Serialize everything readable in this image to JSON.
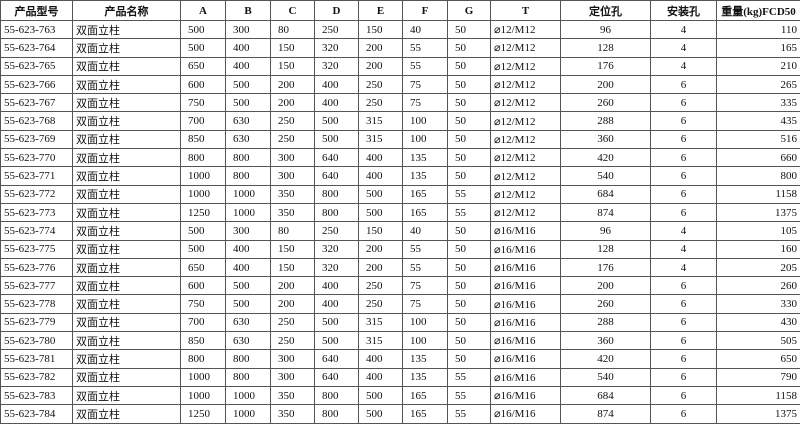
{
  "table": {
    "header": [
      "产品型号",
      "产品名称",
      "A",
      "B",
      "C",
      "D",
      "E",
      "F",
      "G",
      "T",
      "定位孔",
      "安装孔",
      "重量(kg)FCD50"
    ],
    "rows": [
      [
        "55-623-763",
        "双面立柱",
        500,
        300,
        80,
        250,
        150,
        40,
        50,
        "⌀12/M12",
        96,
        4,
        110
      ],
      [
        "55-623-764",
        "双面立柱",
        500,
        400,
        150,
        320,
        200,
        55,
        50,
        "⌀12/M12",
        128,
        4,
        165
      ],
      [
        "55-623-765",
        "双面立柱",
        650,
        400,
        150,
        320,
        200,
        55,
        50,
        "⌀12/M12",
        176,
        4,
        210
      ],
      [
        "55-623-766",
        "双面立柱",
        600,
        500,
        200,
        400,
        250,
        75,
        50,
        "⌀12/M12",
        200,
        6,
        265
      ],
      [
        "55-623-767",
        "双面立柱",
        750,
        500,
        200,
        400,
        250,
        75,
        50,
        "⌀12/M12",
        260,
        6,
        335
      ],
      [
        "55-623-768",
        "双面立柱",
        700,
        630,
        250,
        500,
        315,
        100,
        50,
        "⌀12/M12",
        288,
        6,
        435
      ],
      [
        "55-623-769",
        "双面立柱",
        850,
        630,
        250,
        500,
        315,
        100,
        50,
        "⌀12/M12",
        360,
        6,
        516
      ],
      [
        "55-623-770",
        "双面立柱",
        800,
        800,
        300,
        640,
        400,
        135,
        50,
        "⌀12/M12",
        420,
        6,
        660
      ],
      [
        "55-623-771",
        "双面立柱",
        1000,
        800,
        300,
        640,
        400,
        135,
        50,
        "⌀12/M12",
        540,
        6,
        800
      ],
      [
        "55-623-772",
        "双面立柱",
        1000,
        1000,
        350,
        800,
        500,
        165,
        55,
        "⌀12/M12",
        684,
        6,
        1158
      ],
      [
        "55-623-773",
        "双面立柱",
        1250,
        1000,
        350,
        800,
        500,
        165,
        55,
        "⌀12/M12",
        874,
        6,
        1375
      ],
      [
        "55-623-774",
        "双面立柱",
        500,
        300,
        80,
        250,
        150,
        40,
        50,
        "⌀16/M16",
        96,
        4,
        105
      ],
      [
        "55-623-775",
        "双面立柱",
        500,
        400,
        150,
        320,
        200,
        55,
        50,
        "⌀16/M16",
        128,
        4,
        160
      ],
      [
        "55-623-776",
        "双面立柱",
        650,
        400,
        150,
        320,
        200,
        55,
        50,
        "⌀16/M16",
        176,
        4,
        205
      ],
      [
        "55-623-777",
        "双面立柱",
        600,
        500,
        200,
        400,
        250,
        75,
        50,
        "⌀16/M16",
        200,
        6,
        260
      ],
      [
        "55-623-778",
        "双面立柱",
        750,
        500,
        200,
        400,
        250,
        75,
        50,
        "⌀16/M16",
        260,
        6,
        330
      ],
      [
        "55-623-779",
        "双面立柱",
        700,
        630,
        250,
        500,
        315,
        100,
        50,
        "⌀16/M16",
        288,
        6,
        430
      ],
      [
        "55-623-780",
        "双面立柱",
        850,
        630,
        250,
        500,
        315,
        100,
        50,
        "⌀16/M16",
        360,
        6,
        505
      ],
      [
        "55-623-781",
        "双面立柱",
        800,
        800,
        300,
        640,
        400,
        135,
        50,
        "⌀16/M16",
        420,
        6,
        650
      ],
      [
        "55-623-782",
        "双面立柱",
        1000,
        800,
        300,
        640,
        400,
        135,
        55,
        "⌀16/M16",
        540,
        6,
        790
      ],
      [
        "55-623-783",
        "双面立柱",
        1000,
        1000,
        350,
        800,
        500,
        165,
        55,
        "⌀16/M16",
        684,
        6,
        1158
      ],
      [
        "55-623-784",
        "双面立柱",
        1250,
        1000,
        350,
        800,
        500,
        165,
        55,
        "⌀16/M16",
        874,
        6,
        1375
      ]
    ]
  }
}
